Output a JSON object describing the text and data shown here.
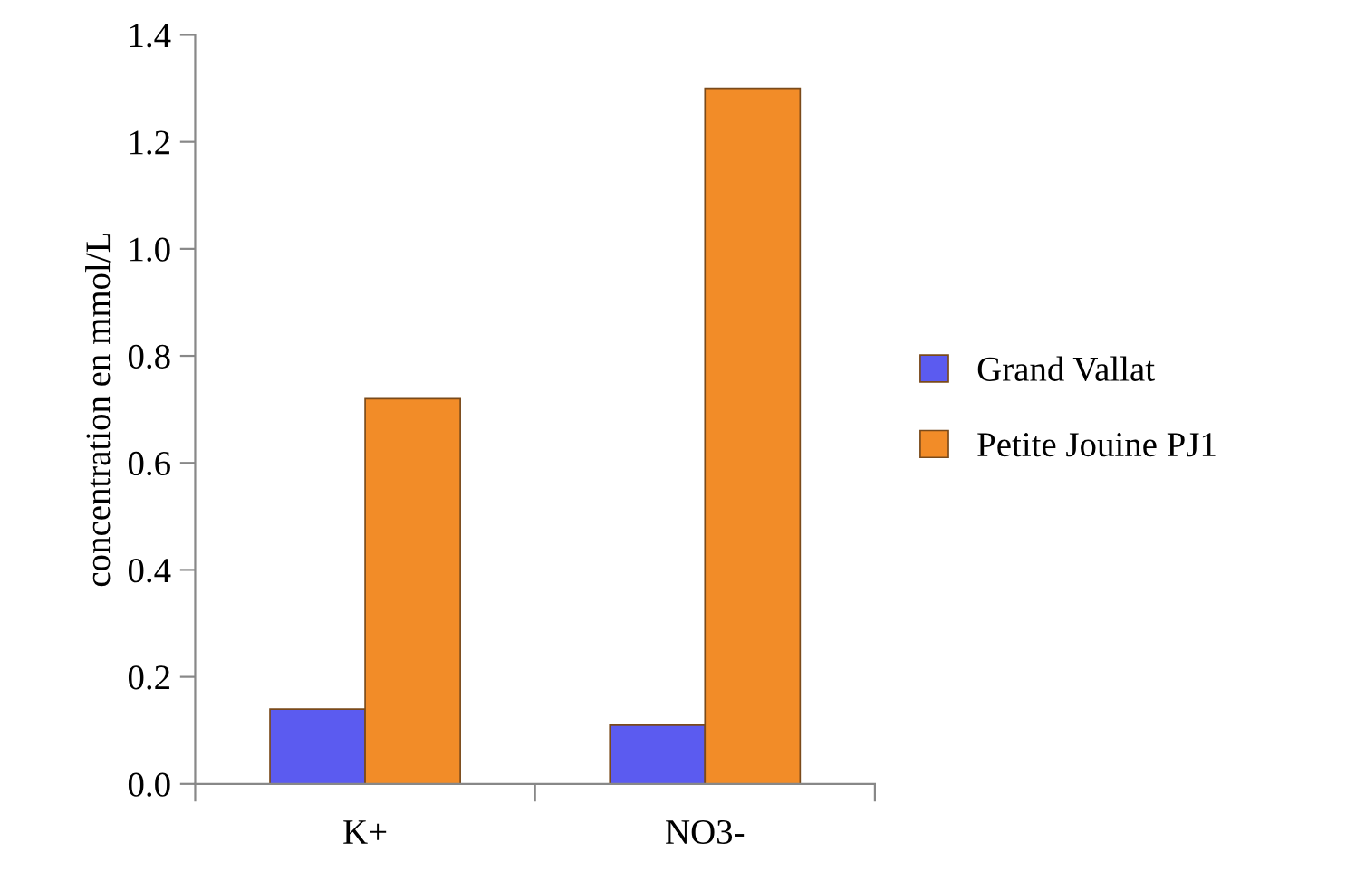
{
  "chart_data": {
    "type": "bar",
    "ylabel": "concentration en mmol/L",
    "categories": [
      "K+",
      "NO3-"
    ],
    "series": [
      {
        "name": "Grand Vallat",
        "color": "#5b5bf0",
        "values": [
          0.14,
          0.11
        ]
      },
      {
        "name": "Petite Jouine PJ1",
        "color": "#f28c28",
        "values": [
          0.72,
          1.3
        ]
      }
    ],
    "ylim": [
      0,
      1.4
    ],
    "yticks": [
      {
        "value": 0,
        "label": "0.0"
      },
      {
        "value": 0.2,
        "label": "0.2"
      },
      {
        "value": 0.4,
        "label": "0.4"
      },
      {
        "value": 0.6,
        "label": "0.6"
      },
      {
        "value": 0.8,
        "label": "0.8"
      },
      {
        "value": 1,
        "label": "1.0"
      },
      {
        "value": 1.2,
        "label": "1.2"
      },
      {
        "value": 1.4,
        "label": "1.4"
      }
    ],
    "grid": false,
    "legend": "right"
  }
}
